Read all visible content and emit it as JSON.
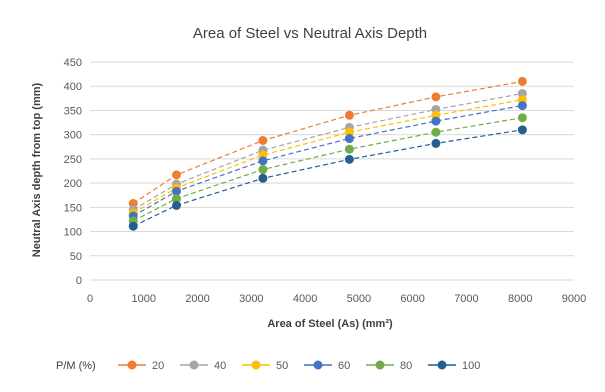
{
  "chart_data": {
    "type": "scatter",
    "title": "Area of Steel vs Neutral Axis Depth",
    "xlabel": "Area of Steel (As) (mm²)",
    "ylabel": "Neutral Axis depth from top (mm)",
    "xlim": [
      0,
      9000
    ],
    "ylim": [
      0,
      450
    ],
    "xticks": [
      0,
      1000,
      2000,
      3000,
      4000,
      5000,
      6000,
      7000,
      8000,
      9000
    ],
    "yticks": [
      0,
      50,
      100,
      150,
      200,
      250,
      300,
      350,
      400,
      450
    ],
    "grid": true,
    "lines": "dashed",
    "legend_title": "P/M (%)",
    "legend_position": "bottom",
    "x": [
      804,
      1608,
      3216,
      4824,
      6432,
      8040
    ],
    "series": [
      {
        "name": "20",
        "color": "#ED7D31",
        "values": [
          158,
          217,
          288,
          340,
          378,
          410
        ]
      },
      {
        "name": "40",
        "color": "#A5A5A5",
        "values": [
          145,
          198,
          268,
          315,
          352,
          385
        ]
      },
      {
        "name": "50",
        "color": "#FFC000",
        "values": [
          138,
          190,
          258,
          305,
          340,
          372
        ]
      },
      {
        "name": "60",
        "color": "#4472C4",
        "values": [
          132,
          183,
          246,
          292,
          328,
          360
        ]
      },
      {
        "name": "80",
        "color": "#70AD47",
        "values": [
          122,
          168,
          228,
          270,
          305,
          335
        ]
      },
      {
        "name": "100",
        "color": "#255E91",
        "values": [
          111,
          154,
          210,
          249,
          282,
          310
        ]
      }
    ]
  }
}
